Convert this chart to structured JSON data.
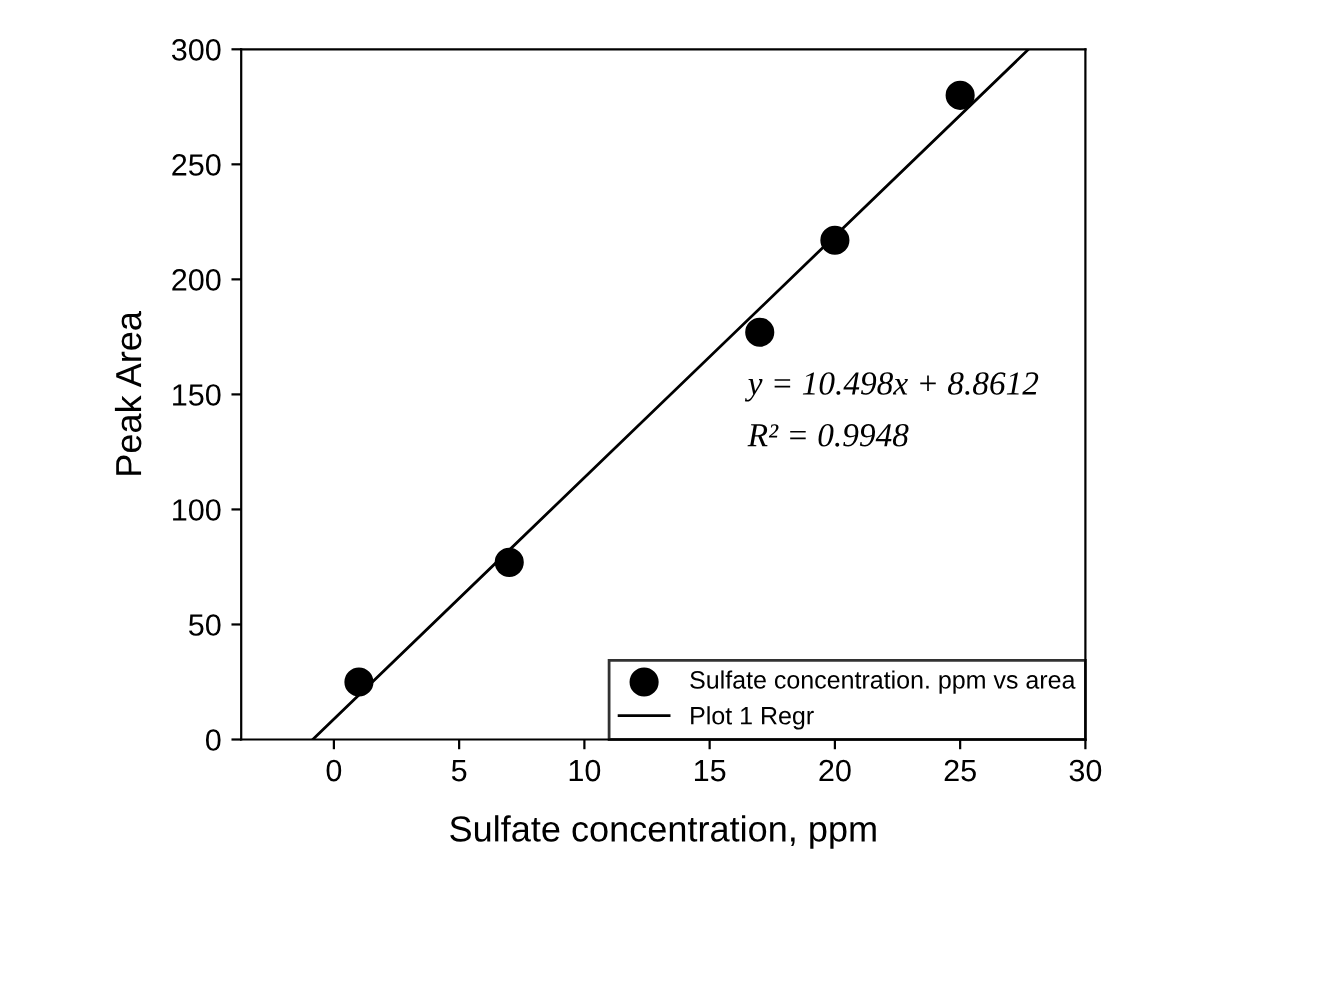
{
  "chart_data": {
    "type": "scatter",
    "xlabel": "Sulfate concentration, ppm",
    "ylabel": "Peak Area",
    "xlim": [
      -3.7,
      30
    ],
    "ylim": [
      0,
      300
    ],
    "xticks": [
      0,
      5,
      10,
      15,
      20,
      25,
      30
    ],
    "yticks": [
      0,
      50,
      100,
      150,
      200,
      250,
      300
    ],
    "grid": false,
    "legend": "bottom right",
    "series": [
      {
        "name": "Sulfate concentration. ppm vs area",
        "marker": "circle",
        "color": "#000000",
        "x": [
          1,
          7,
          17,
          20,
          25
        ],
        "values": [
          25,
          77,
          177,
          217,
          280
        ]
      },
      {
        "name": "Plot 1 Regr",
        "type": "line",
        "color": "#000000",
        "line_style": "solid",
        "x": [
          -0.844,
          27.73
        ],
        "values": [
          0,
          300
        ]
      }
    ],
    "annotations": [
      "y = 10.498x + 8.8612",
      "R² = 0.9948"
    ]
  }
}
